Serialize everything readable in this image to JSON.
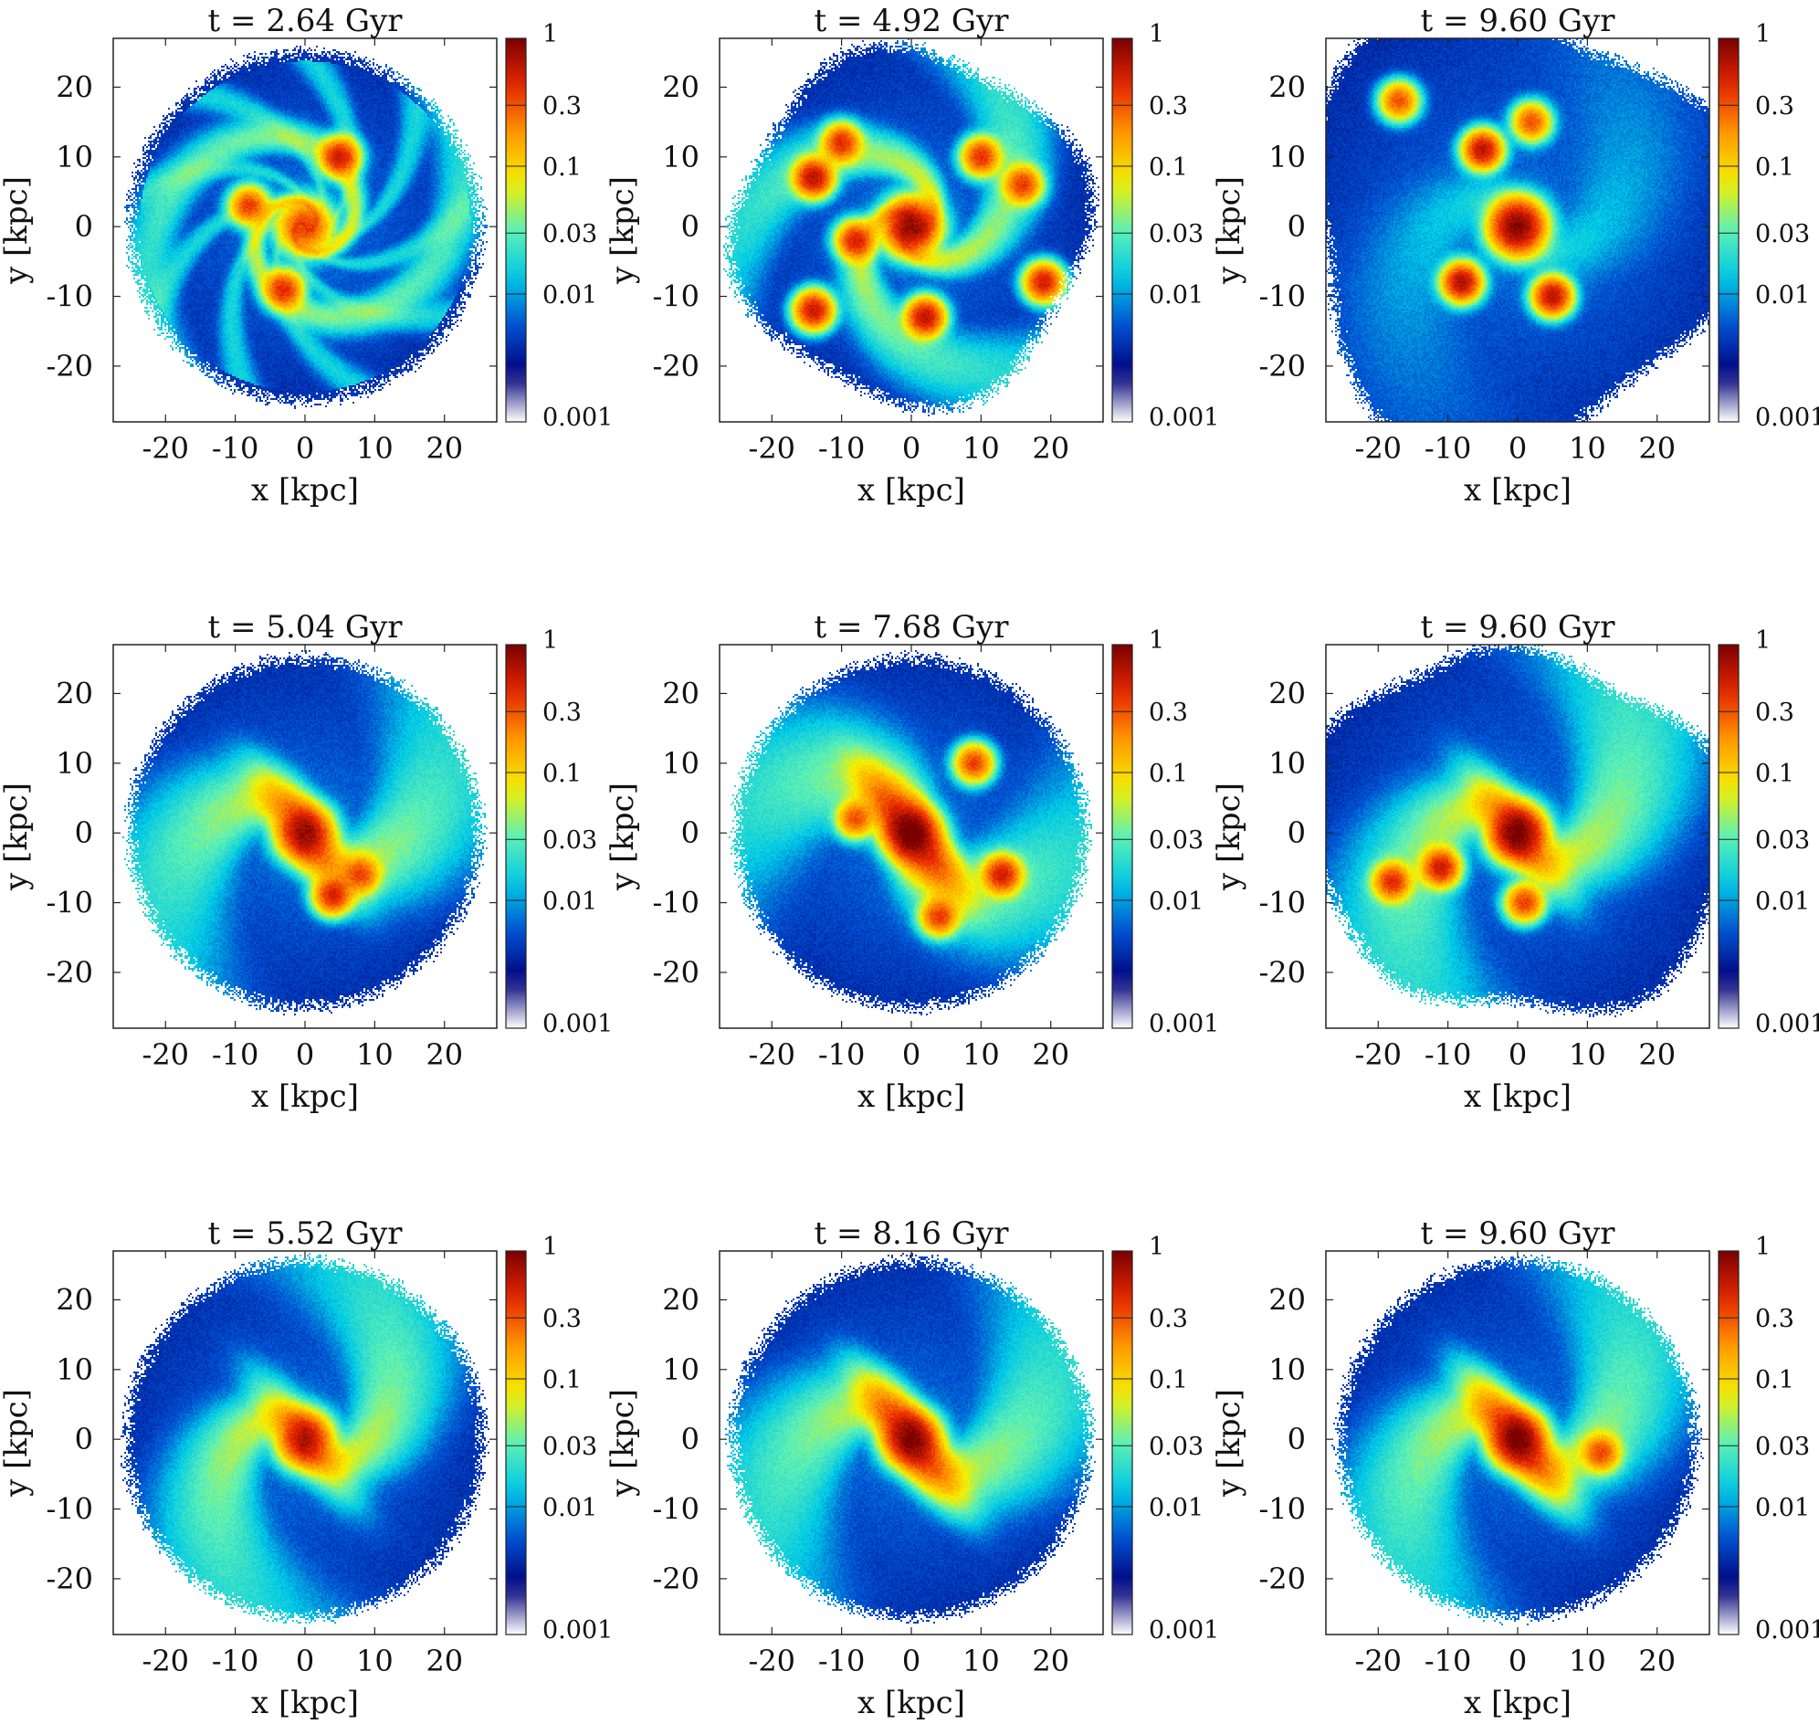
{
  "colorbar": {
    "ticks": [
      1,
      0.3,
      0.1,
      0.03,
      0.01,
      0.001
    ],
    "tick_labels": [
      "1",
      "0.3",
      "0.1",
      "0.03",
      "0.01",
      "0.001"
    ],
    "range": [
      0.001,
      1
    ],
    "scale": "log",
    "colors": [
      "#ffffff",
      "#00007a",
      "#0050d0",
      "#00c8e6",
      "#5ef0b4",
      "#f5f000",
      "#ff9a00",
      "#e82800",
      "#7a0000"
    ]
  },
  "chart_data": [
    {
      "type": "heatmap",
      "title": "t = 2.64 Gyr",
      "xlabel": "x [kpc]",
      "ylabel": "y [kpc]",
      "xlim": [
        -27.5,
        27.5
      ],
      "ylim": [
        -28,
        27
      ],
      "xticks": [
        -20,
        -10,
        0,
        10,
        20
      ],
      "yticks": [
        -20,
        -10,
        0,
        10,
        20
      ],
      "morphology": "flocculant",
      "arms": 2,
      "arm_pitch": 3.0,
      "bar_strength": 0.0,
      "center_peak": 0.35,
      "disk_radius": 25,
      "clumps": [
        [
          5,
          10,
          0.5
        ],
        [
          -3,
          -9,
          0.4
        ],
        [
          -8,
          3,
          0.35
        ]
      ]
    },
    {
      "type": "heatmap",
      "title": "t = 4.92 Gyr",
      "xlabel": "x [kpc]",
      "ylabel": "y [kpc]",
      "xlim": [
        -27.5,
        27.5
      ],
      "ylim": [
        -28,
        27
      ],
      "xticks": [
        -20,
        -10,
        0,
        10,
        20
      ],
      "yticks": [
        -20,
        -10,
        0,
        10,
        20
      ],
      "morphology": "clumpy",
      "arms": 3,
      "arm_pitch": 1.6,
      "bar_strength": 0.0,
      "center_peak": 0.8,
      "disk_radius": 25,
      "clumps": [
        [
          -14,
          7,
          0.6
        ],
        [
          -8,
          -2,
          0.45
        ],
        [
          2,
          -13,
          0.6
        ],
        [
          -14,
          -12,
          0.55
        ],
        [
          19,
          -8,
          0.5
        ],
        [
          10,
          10,
          0.4
        ],
        [
          16,
          6,
          0.35
        ],
        [
          -10,
          12,
          0.4
        ]
      ]
    },
    {
      "type": "heatmap",
      "title": "t = 9.60 Gyr",
      "xlabel": "x [kpc]",
      "ylabel": "y [kpc]",
      "xlim": [
        -27.5,
        27.5
      ],
      "ylim": [
        -28,
        27
      ],
      "xticks": [
        -20,
        -10,
        0,
        10,
        20
      ],
      "yticks": [
        -20,
        -10,
        0,
        10,
        20
      ],
      "morphology": "diffuse",
      "arms": 2,
      "arm_pitch": 1.2,
      "bar_strength": 0.0,
      "center_peak": 0.9,
      "disk_radius": 31,
      "clumps": [
        [
          -5,
          11,
          0.6
        ],
        [
          -8,
          -8,
          0.65
        ],
        [
          5,
          -10,
          0.6
        ],
        [
          2,
          15,
          0.3
        ],
        [
          -17,
          18,
          0.3
        ]
      ]
    },
    {
      "type": "heatmap",
      "title": "t = 5.04 Gyr",
      "xlabel": "x [kpc]",
      "ylabel": "y [kpc]",
      "xlim": [
        -27.5,
        27.5
      ],
      "ylim": [
        -28,
        27
      ],
      "xticks": [
        -20,
        -10,
        0,
        10,
        20
      ],
      "yticks": [
        -20,
        -10,
        0,
        10,
        20
      ],
      "morphology": "grand-design",
      "arms": 2,
      "arm_pitch": 1.1,
      "bar_strength": 0.4,
      "center_peak": 0.6,
      "disk_radius": 25,
      "clumps": [
        [
          4,
          -9,
          0.45
        ],
        [
          8,
          -6,
          0.3
        ]
      ]
    },
    {
      "type": "heatmap",
      "title": "t = 7.68 Gyr",
      "xlabel": "x [kpc]",
      "ylabel": "y [kpc]",
      "xlim": [
        -27.5,
        27.5
      ],
      "ylim": [
        -28,
        27
      ],
      "xticks": [
        -20,
        -10,
        0,
        10,
        20
      ],
      "yticks": [
        -20,
        -10,
        0,
        10,
        20
      ],
      "morphology": "barred-irregular",
      "arms": 2,
      "arm_pitch": 0.9,
      "bar_strength": 1.0,
      "center_peak": 0.7,
      "disk_radius": 25,
      "clumps": [
        [
          13,
          -6,
          0.5
        ],
        [
          9,
          10,
          0.35
        ],
        [
          4,
          -12,
          0.35
        ],
        [
          -8,
          2,
          0.3
        ]
      ]
    },
    {
      "type": "heatmap",
      "title": "t = 9.60 Gyr",
      "xlabel": "x [kpc]",
      "ylabel": "y [kpc]",
      "xlim": [
        -27.5,
        27.5
      ],
      "ylim": [
        -28,
        27
      ],
      "xticks": [
        -20,
        -10,
        0,
        10,
        20
      ],
      "yticks": [
        -20,
        -10,
        0,
        10,
        20
      ],
      "morphology": "tidal",
      "arms": 2,
      "arm_pitch": 1.2,
      "bar_strength": 0.3,
      "center_peak": 0.9,
      "disk_radius": 28,
      "clumps": [
        [
          -11,
          -5,
          0.5
        ],
        [
          -18,
          -7,
          0.4
        ],
        [
          1,
          -10,
          0.35
        ]
      ]
    },
    {
      "type": "heatmap",
      "title": "t = 5.52 Gyr",
      "xlabel": "x [kpc]",
      "ylabel": "y [kpc]",
      "xlim": [
        -27.5,
        27.5
      ],
      "ylim": [
        -28,
        27
      ],
      "xticks": [
        -20,
        -10,
        0,
        10,
        20
      ],
      "yticks": [
        -20,
        -10,
        0,
        10,
        20
      ],
      "morphology": "smooth-grand-design",
      "arms": 2,
      "arm_pitch": 1.3,
      "bar_strength": 0.2,
      "center_peak": 0.55,
      "disk_radius": 25.5,
      "clumps": []
    },
    {
      "type": "heatmap",
      "title": "t = 8.16 Gyr",
      "xlabel": "x [kpc]",
      "ylabel": "y [kpc]",
      "xlim": [
        -27.5,
        27.5
      ],
      "ylim": [
        -28,
        27
      ],
      "xticks": [
        -20,
        -10,
        0,
        10,
        20
      ],
      "yticks": [
        -20,
        -10,
        0,
        10,
        20
      ],
      "morphology": "barred-spiral",
      "arms": 2,
      "arm_pitch": 1.1,
      "bar_strength": 0.7,
      "center_peak": 0.65,
      "disk_radius": 25.5,
      "clumps": []
    },
    {
      "type": "heatmap",
      "title": "t = 9.60 Gyr",
      "xlabel": "x [kpc]",
      "ylabel": "y [kpc]",
      "xlim": [
        -27.5,
        27.5
      ],
      "ylim": [
        -28,
        27
      ],
      "xticks": [
        -20,
        -10,
        0,
        10,
        20
      ],
      "yticks": [
        -20,
        -10,
        0,
        10,
        20
      ],
      "morphology": "barred-spiral",
      "arms": 2,
      "arm_pitch": 1.2,
      "bar_strength": 0.6,
      "center_peak": 0.75,
      "disk_radius": 25.5,
      "clumps": [
        [
          12,
          -2,
          0.3
        ]
      ]
    }
  ]
}
